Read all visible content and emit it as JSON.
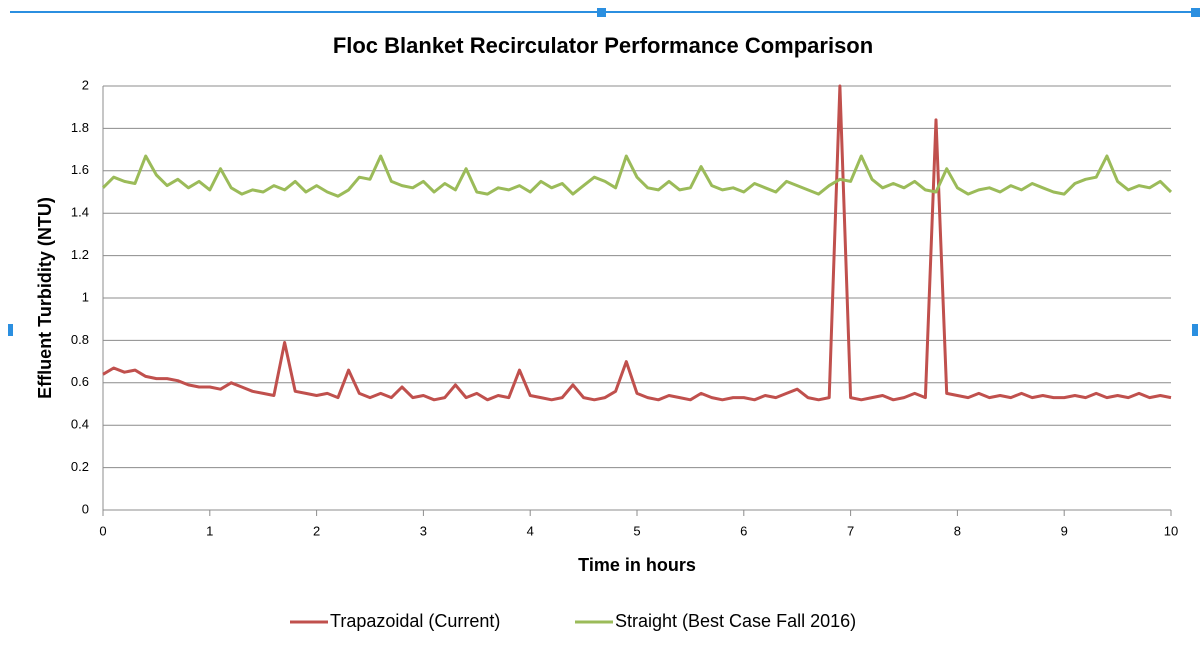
{
  "chart_data": {
    "type": "line",
    "title": "Floc Blanket Recirculator Performance Comparison",
    "x_label": "Time in hours",
    "y_label": "Effluent Turbidity (NTU)",
    "x": [
      0,
      0.1,
      0.2,
      0.3,
      0.4,
      0.5,
      0.6,
      0.7,
      0.8,
      0.9,
      1,
      1.1,
      1.2,
      1.3,
      1.4,
      1.5,
      1.6,
      1.7,
      1.8,
      1.9,
      2,
      2.1,
      2.2,
      2.3,
      2.4,
      2.5,
      2.6,
      2.7,
      2.8,
      2.9,
      3,
      3.1,
      3.2,
      3.3,
      3.4,
      3.5,
      3.6,
      3.7,
      3.8,
      3.9,
      4,
      4.1,
      4.2,
      4.3,
      4.4,
      4.5,
      4.6,
      4.7,
      4.8,
      4.9,
      5,
      5.1,
      5.2,
      5.3,
      5.4,
      5.5,
      5.6,
      5.7,
      5.8,
      5.9,
      6,
      6.1,
      6.2,
      6.3,
      6.4,
      6.5,
      6.6,
      6.7,
      6.8,
      6.9,
      7,
      7.1,
      7.2,
      7.3,
      7.4,
      7.5,
      7.6,
      7.7,
      7.8,
      7.9,
      8,
      8.1,
      8.2,
      8.3,
      8.4,
      8.5,
      8.6,
      8.7,
      8.8,
      8.9,
      9,
      9.1,
      9.2,
      9.3,
      9.4,
      9.5,
      9.6,
      9.7,
      9.8,
      9.9,
      10
    ],
    "series": [
      {
        "name": "Trapazoidal (Current)",
        "color": "#c0504d",
        "values": [
          0.64,
          0.67,
          0.65,
          0.66,
          0.63,
          0.62,
          0.62,
          0.61,
          0.59,
          0.58,
          0.58,
          0.57,
          0.6,
          0.58,
          0.56,
          0.55,
          0.54,
          0.79,
          0.56,
          0.55,
          0.54,
          0.55,
          0.53,
          0.66,
          0.55,
          0.53,
          0.55,
          0.53,
          0.58,
          0.53,
          0.54,
          0.52,
          0.53,
          0.59,
          0.53,
          0.55,
          0.52,
          0.54,
          0.53,
          0.66,
          0.54,
          0.53,
          0.52,
          0.53,
          0.59,
          0.53,
          0.52,
          0.53,
          0.56,
          0.7,
          0.55,
          0.53,
          0.52,
          0.54,
          0.53,
          0.52,
          0.55,
          0.53,
          0.52,
          0.53,
          0.53,
          0.52,
          0.54,
          0.53,
          0.55,
          0.57,
          0.53,
          0.52,
          0.53,
          2,
          0.53,
          0.52,
          0.53,
          0.54,
          0.52,
          0.53,
          0.55,
          0.53,
          1.84,
          0.55,
          0.54,
          0.53,
          0.55,
          0.53,
          0.54,
          0.53,
          0.55,
          0.53,
          0.54,
          0.53,
          0.53,
          0.54,
          0.53,
          0.55,
          0.53,
          0.54,
          0.53,
          0.55,
          0.53,
          0.54,
          0.53
        ]
      },
      {
        "name": "Straight (Best Case Fall 2016)",
        "color": "#9bbb59",
        "values": [
          1.52,
          1.57,
          1.55,
          1.54,
          1.67,
          1.58,
          1.53,
          1.56,
          1.52,
          1.55,
          1.51,
          1.61,
          1.52,
          1.49,
          1.51,
          1.5,
          1.53,
          1.51,
          1.55,
          1.5,
          1.53,
          1.5,
          1.48,
          1.51,
          1.57,
          1.56,
          1.67,
          1.55,
          1.53,
          1.52,
          1.55,
          1.5,
          1.54,
          1.51,
          1.61,
          1.5,
          1.49,
          1.52,
          1.51,
          1.53,
          1.5,
          1.55,
          1.52,
          1.54,
          1.49,
          1.53,
          1.57,
          1.55,
          1.52,
          1.67,
          1.57,
          1.52,
          1.51,
          1.55,
          1.51,
          1.52,
          1.62,
          1.53,
          1.51,
          1.52,
          1.5,
          1.54,
          1.52,
          1.5,
          1.55,
          1.53,
          1.51,
          1.49,
          1.53,
          1.56,
          1.55,
          1.67,
          1.56,
          1.52,
          1.54,
          1.52,
          1.55,
          1.51,
          1.5,
          1.61,
          1.52,
          1.49,
          1.51,
          1.52,
          1.5,
          1.53,
          1.51,
          1.54,
          1.52,
          1.5,
          1.49,
          1.54,
          1.56,
          1.57,
          1.67,
          1.55,
          1.51,
          1.53,
          1.52,
          1.55,
          1.5
        ]
      }
    ],
    "xlim": [
      0,
      10
    ],
    "xticks": [
      0,
      1,
      2,
      3,
      4,
      5,
      6,
      7,
      8,
      9,
      10
    ],
    "ylim": [
      0,
      2
    ],
    "yticks": [
      0,
      0.2,
      0.4,
      0.6,
      0.8,
      1,
      1.2,
      1.4,
      1.6,
      1.8,
      2
    ],
    "grid": true,
    "legend": "bottom"
  }
}
